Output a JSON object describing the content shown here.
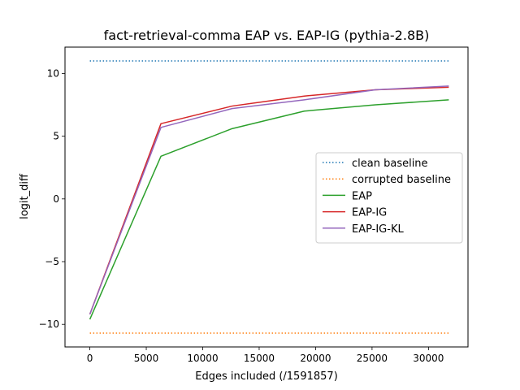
{
  "chart_data": {
    "type": "line",
    "title": "fact-retrieval-comma EAP vs. EAP-IG (pythia-2.8B)",
    "xlabel": "Edges included (/1591857)",
    "ylabel": "logit_diff",
    "xlim": [
      -2200,
      33500
    ],
    "ylim": [
      -11.8,
      12.1
    ],
    "xticks": [
      0,
      5000,
      10000,
      15000,
      20000,
      25000,
      30000
    ],
    "xtick_labels": [
      "0",
      "5000",
      "10000",
      "15000",
      "20000",
      "25000",
      "30000"
    ],
    "yticks": [
      -10,
      -5,
      0,
      5,
      10
    ],
    "ytick_labels": [
      "−10",
      "−5",
      "0",
      "5",
      "10"
    ],
    "grid": false,
    "legend_position": "center-right",
    "series": [
      {
        "name": "clean baseline",
        "style": "dotted",
        "color": "#1f77b4",
        "x": [
          0,
          31800
        ],
        "y": [
          11.0,
          11.0
        ]
      },
      {
        "name": "corrupted baseline",
        "style": "dotted",
        "color": "#ff7f0e",
        "x": [
          0,
          31800
        ],
        "y": [
          -10.7,
          -10.7
        ]
      },
      {
        "name": "EAP",
        "style": "solid",
        "color": "#2ca02c",
        "x": [
          0,
          6300,
          12600,
          19000,
          25300,
          31800
        ],
        "y": [
          -9.6,
          3.4,
          5.6,
          7.0,
          7.5,
          7.9
        ]
      },
      {
        "name": "EAP-IG",
        "style": "solid",
        "color": "#d62728",
        "x": [
          0,
          6300,
          12600,
          19000,
          25300,
          31800
        ],
        "y": [
          -9.2,
          6.0,
          7.4,
          8.2,
          8.7,
          8.9
        ]
      },
      {
        "name": "EAP-IG-KL",
        "style": "solid",
        "color": "#9467bd",
        "x": [
          0,
          6300,
          12600,
          19000,
          25300,
          31800
        ],
        "y": [
          -9.2,
          5.7,
          7.2,
          7.9,
          8.7,
          9.0
        ]
      }
    ]
  }
}
